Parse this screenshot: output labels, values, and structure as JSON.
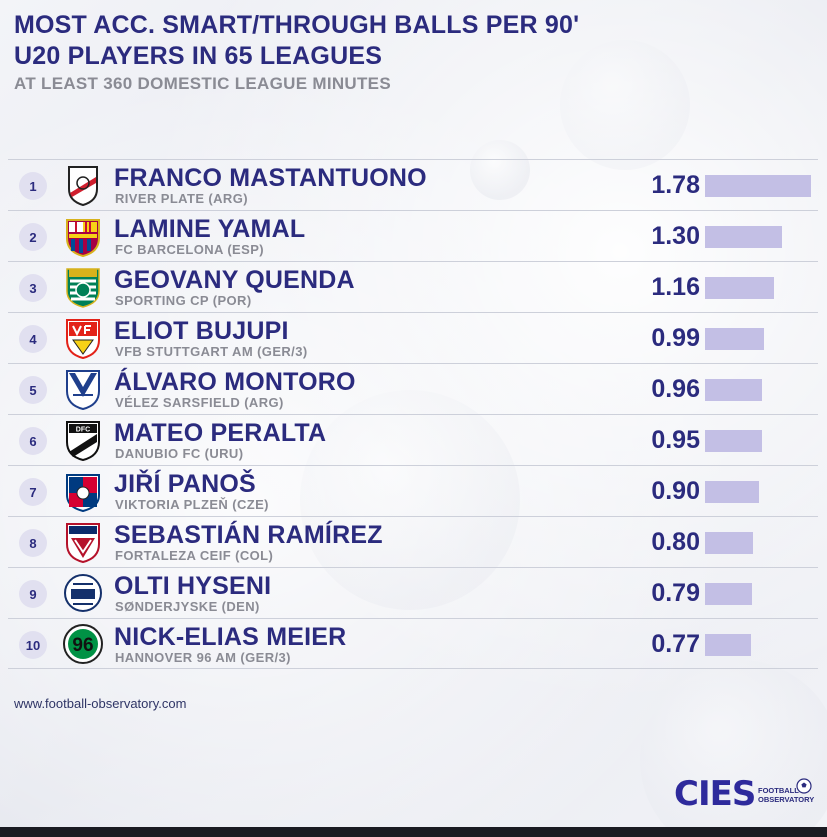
{
  "header": {
    "title_line1": "MOST ACC. SMART/THROUGH BALLS PER 90'",
    "title_line2": "U20 PLAYERS IN 65 LEAGUES",
    "subtitle": "AT LEAST 360 DOMESTIC LEAGUE MINUTES"
  },
  "chart_data": {
    "type": "bar",
    "orientation": "horizontal",
    "title": "MOST ACC. SMART/THROUGH BALLS PER 90' U20 PLAYERS IN 65 LEAGUES",
    "subtitle": "AT LEAST 360 DOMESTIC LEAGUE MINUTES",
    "categories": [
      "FRANCO MASTANTUONO",
      "LAMINE YAMAL",
      "GEOVANY QUENDA",
      "ELIOT BUJUPI",
      "ÁLVARO MONTORO",
      "MATEO PERALTA",
      "JIŘÍ PANOŠ",
      "SEBASTIÁN RAMÍREZ",
      "OLTI HYSENI",
      "NICK-ELIAS MEIER"
    ],
    "values": [
      1.78,
      1.3,
      1.16,
      0.99,
      0.96,
      0.95,
      0.9,
      0.8,
      0.79,
      0.77
    ],
    "bar_color": "#c3bfe5",
    "rows": [
      {
        "rank": "1",
        "name": "FRANCO MASTANTUONO",
        "club": "RIVER PLATE (ARG)",
        "value": "1.78",
        "logo": "river-plate-crest"
      },
      {
        "rank": "2",
        "name": "LAMINE YAMAL",
        "club": "FC BARCELONA (ESP)",
        "value": "1.30",
        "logo": "fc-barcelona-crest"
      },
      {
        "rank": "3",
        "name": "GEOVANY QUENDA",
        "club": "SPORTING CP (POR)",
        "value": "1.16",
        "logo": "sporting-cp-crest"
      },
      {
        "rank": "4",
        "name": "ELIOT BUJUPI",
        "club": "VFB STUTTGART AM (GER/3)",
        "value": "0.99",
        "logo": "vfb-stuttgart-crest"
      },
      {
        "rank": "5",
        "name": "ÁLVARO MONTORO",
        "club": "VÉLEZ SARSFIELD (ARG)",
        "value": "0.96",
        "logo": "velez-sarsfield-crest"
      },
      {
        "rank": "6",
        "name": "MATEO PERALTA",
        "club": "DANUBIO FC (URU)",
        "value": "0.95",
        "logo": "danubio-crest"
      },
      {
        "rank": "7",
        "name": "JIŘÍ PANOŠ",
        "club": "VIKTORIA PLZEŇ (CZE)",
        "value": "0.90",
        "logo": "viktoria-plzen-crest"
      },
      {
        "rank": "8",
        "name": "SEBASTIÁN RAMÍREZ",
        "club": "FORTALEZA CEIF (COL)",
        "value": "0.80",
        "logo": "fortaleza-ceif-crest"
      },
      {
        "rank": "9",
        "name": "OLTI HYSENI",
        "club": "SØNDERJYSKE (DEN)",
        "value": "0.79",
        "logo": "sonderjyske-crest"
      },
      {
        "rank": "10",
        "name": "NICK-ELIAS MEIER",
        "club": "HANNOVER 96 AM (GER/3)",
        "value": "0.77",
        "logo": "hannover-96-crest"
      }
    ]
  },
  "footer": {
    "source": "www.football-observatory.com",
    "brand": "CIES",
    "brand_line1": "FOOTBALL",
    "brand_line2": "OBSERVATORY"
  },
  "colors": {
    "primary": "#2b2b7e",
    "secondary": "#8a8b94",
    "bar": "#c3bfe5",
    "rank_bg": "#e1e0f0"
  }
}
